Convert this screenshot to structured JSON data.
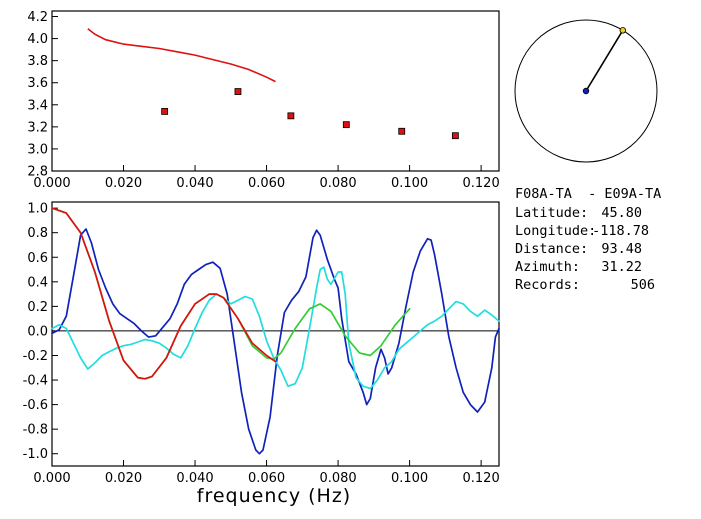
{
  "chart_data": [
    {
      "type": "scatter",
      "xlim": [
        0.0,
        0.125
      ],
      "ylim": [
        2.8,
        4.25
      ],
      "x_tick_labels": [
        "0.000",
        "0.020",
        "0.040",
        "0.060",
        "0.080",
        "0.100",
        "0.120"
      ],
      "y_tick_labels": [
        "2.8",
        "3.0",
        "3.2",
        "3.4",
        "3.6",
        "3.8",
        "4.0",
        "4.2"
      ],
      "series": [
        {
          "kind": "line",
          "color": "#dd1111",
          "x": [
            0.01,
            0.012,
            0.015,
            0.02,
            0.025,
            0.03,
            0.035,
            0.04,
            0.045,
            0.05,
            0.055,
            0.06,
            0.0625
          ],
          "y": [
            4.09,
            4.04,
            3.99,
            3.95,
            3.93,
            3.91,
            3.88,
            3.85,
            3.81,
            3.77,
            3.72,
            3.65,
            3.61
          ]
        },
        {
          "kind": "points",
          "color": "#dd1111",
          "x": [
            0.0315,
            0.052,
            0.0668,
            0.0823,
            0.0978,
            0.1128
          ],
          "y": [
            3.34,
            3.52,
            3.3,
            3.22,
            3.16,
            3.12
          ]
        }
      ]
    },
    {
      "type": "line",
      "xlabel": "frequency  (Hz)",
      "xlim": [
        0.0,
        0.125
      ],
      "ylim": [
        -1.1,
        1.05
      ],
      "x_tick_labels": [
        "0.000",
        "0.020",
        "0.040",
        "0.060",
        "0.080",
        "0.100",
        "0.120"
      ],
      "y_tick_labels": [
        "1.0",
        "0.8",
        "0.6",
        "0.4",
        "0.2",
        "0.0",
        "-0.2",
        "-0.4",
        "-0.6",
        "-0.8",
        "-1.0"
      ],
      "zero_line": true,
      "series": [
        {
          "color": "#1122bb",
          "x": [
            0.0,
            0.002,
            0.004,
            0.006,
            0.008,
            0.0095,
            0.011,
            0.013,
            0.015,
            0.017,
            0.019,
            0.021,
            0.023,
            0.025,
            0.027,
            0.029,
            0.031,
            0.033,
            0.035,
            0.037,
            0.039,
            0.041,
            0.043,
            0.045,
            0.047,
            0.049,
            0.051,
            0.053,
            0.055,
            0.057,
            0.058,
            0.059,
            0.061,
            0.063,
            0.065,
            0.067,
            0.069,
            0.071,
            0.073,
            0.074,
            0.075,
            0.077,
            0.079,
            0.08,
            0.081,
            0.083,
            0.084,
            0.085,
            0.087,
            0.088,
            0.089,
            0.0905,
            0.092,
            0.093,
            0.094,
            0.095,
            0.097,
            0.099,
            0.101,
            0.103,
            0.105,
            0.106,
            0.107,
            0.109,
            0.111,
            0.113,
            0.115,
            0.117,
            0.119,
            0.121,
            0.123,
            0.124,
            0.125
          ],
          "y": [
            -0.02,
            0.01,
            0.12,
            0.45,
            0.78,
            0.83,
            0.72,
            0.5,
            0.35,
            0.22,
            0.14,
            0.1,
            0.06,
            0.0,
            -0.05,
            -0.04,
            0.03,
            0.1,
            0.22,
            0.38,
            0.46,
            0.5,
            0.54,
            0.56,
            0.51,
            0.3,
            -0.1,
            -0.5,
            -0.8,
            -0.97,
            -1.0,
            -0.97,
            -0.7,
            -0.2,
            0.15,
            0.25,
            0.32,
            0.44,
            0.76,
            0.82,
            0.78,
            0.58,
            0.42,
            0.35,
            0.1,
            -0.25,
            -0.3,
            -0.35,
            -0.5,
            -0.6,
            -0.55,
            -0.3,
            -0.15,
            -0.22,
            -0.35,
            -0.3,
            -0.1,
            0.2,
            0.48,
            0.65,
            0.75,
            0.74,
            0.62,
            0.3,
            -0.05,
            -0.3,
            -0.5,
            -0.6,
            -0.66,
            -0.58,
            -0.3,
            -0.05,
            0.02
          ]
        },
        {
          "color": "#22dddd",
          "x": [
            0.0,
            0.002,
            0.004,
            0.006,
            0.008,
            0.01,
            0.012,
            0.014,
            0.016,
            0.018,
            0.02,
            0.022,
            0.024,
            0.026,
            0.028,
            0.03,
            0.032,
            0.034,
            0.036,
            0.038,
            0.04,
            0.042,
            0.044,
            0.046,
            0.048,
            0.05,
            0.052,
            0.054,
            0.056,
            0.058,
            0.06,
            0.062,
            0.064,
            0.066,
            0.068,
            0.07,
            0.072,
            0.074,
            0.075,
            0.076,
            0.077,
            0.078,
            0.08,
            0.081,
            0.082,
            0.083,
            0.085,
            0.087,
            0.089,
            0.091,
            0.093,
            0.095,
            0.097,
            0.099,
            0.101,
            0.103,
            0.105,
            0.107,
            0.109,
            0.111,
            0.113,
            0.115,
            0.117,
            0.119,
            0.121,
            0.123,
            0.125
          ],
          "y": [
            0.02,
            0.05,
            0.02,
            -0.1,
            -0.22,
            -0.31,
            -0.26,
            -0.2,
            -0.17,
            -0.14,
            -0.12,
            -0.11,
            -0.09,
            -0.07,
            -0.08,
            -0.1,
            -0.14,
            -0.19,
            -0.22,
            -0.12,
            0.02,
            0.15,
            0.25,
            0.3,
            0.27,
            0.22,
            0.25,
            0.28,
            0.26,
            0.12,
            -0.08,
            -0.22,
            -0.32,
            -0.45,
            -0.43,
            -0.3,
            0.02,
            0.35,
            0.5,
            0.52,
            0.42,
            0.38,
            0.48,
            0.48,
            0.3,
            -0.1,
            -0.38,
            -0.45,
            -0.47,
            -0.4,
            -0.3,
            -0.25,
            -0.15,
            -0.1,
            -0.05,
            0.0,
            0.05,
            0.08,
            0.12,
            0.18,
            0.24,
            0.22,
            0.16,
            0.12,
            0.17,
            0.13,
            0.08
          ]
        },
        {
          "color": "#33cc33",
          "x": [
            0.0,
            0.004,
            0.008,
            0.012,
            0.016,
            0.02,
            0.024,
            0.026,
            0.028,
            0.032,
            0.036,
            0.04,
            0.044,
            0.046,
            0.048,
            0.052,
            0.056,
            0.06,
            0.062,
            0.064,
            0.068,
            0.072,
            0.075,
            0.078,
            0.082,
            0.086,
            0.089,
            0.092,
            0.096,
            0.1
          ],
          "y": [
            1.0,
            0.96,
            0.8,
            0.48,
            0.08,
            -0.24,
            -0.38,
            -0.39,
            -0.37,
            -0.22,
            0.04,
            0.22,
            0.3,
            0.3,
            0.27,
            0.1,
            -0.12,
            -0.22,
            -0.23,
            -0.18,
            0.02,
            0.18,
            0.22,
            0.16,
            -0.04,
            -0.18,
            -0.2,
            -0.12,
            0.05,
            0.18
          ]
        },
        {
          "color": "#dd1111",
          "x": [
            0.0,
            0.004,
            0.008,
            0.012,
            0.016,
            0.02,
            0.024,
            0.026,
            0.028,
            0.032,
            0.036,
            0.04,
            0.044,
            0.046,
            0.048,
            0.052,
            0.056,
            0.06,
            0.0625
          ],
          "y": [
            1.0,
            0.96,
            0.8,
            0.48,
            0.08,
            -0.24,
            -0.38,
            -0.39,
            -0.37,
            -0.22,
            0.04,
            0.22,
            0.3,
            0.3,
            0.27,
            0.1,
            -0.1,
            -0.2,
            -0.25
          ]
        }
      ]
    },
    {
      "type": "map-inset",
      "azimuth_deg": 31.22
    }
  ],
  "info": {
    "title": "F08A-TA  - E09A-TA",
    "rows": [
      {
        "label": "Latitude:",
        "value": "45.80"
      },
      {
        "label": "Longitude:",
        "value": "-118.78"
      },
      {
        "label": "Distance:",
        "value": "93.48"
      },
      {
        "label": "Azimuth:",
        "value": "31.22"
      },
      {
        "label": "Records:",
        "value": "506"
      }
    ]
  }
}
